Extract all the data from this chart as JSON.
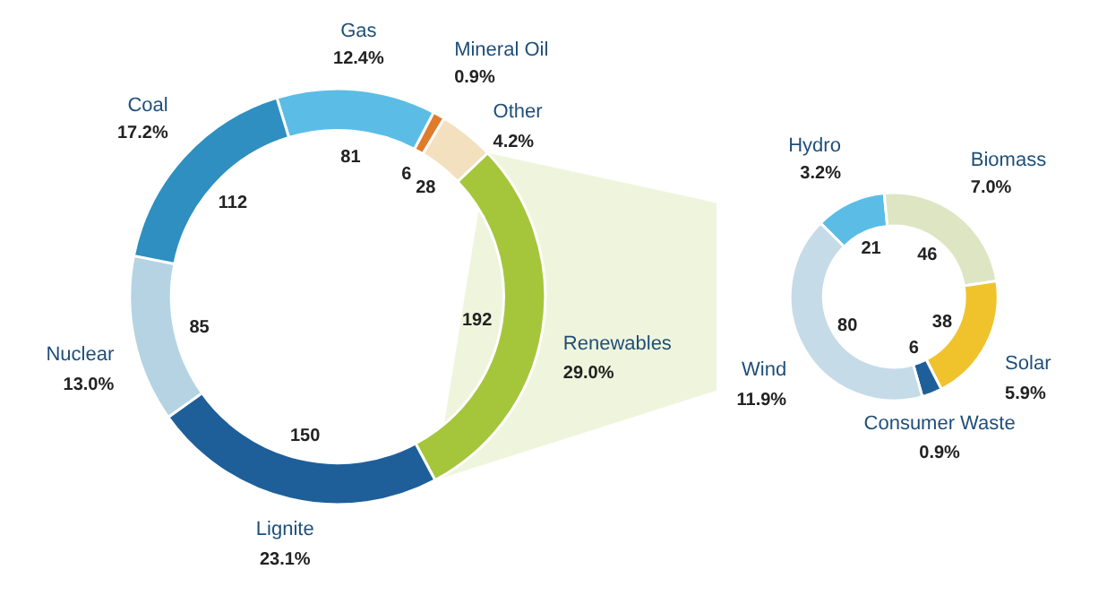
{
  "chart_data": [
    {
      "type": "donut",
      "categories": [
        "Gas",
        "Mineral Oil",
        "Other",
        "Renewables",
        "Lignite",
        "Nuclear",
        "Coal"
      ],
      "values": [
        81,
        6,
        28,
        192,
        150,
        85,
        112
      ],
      "colors": [
        "#5bbde6",
        "#e07b2c",
        "#f3e0bf",
        "#a5c63b",
        "#1e5f9a",
        "#b5d3e3",
        "#2e8fc0"
      ],
      "data_labels": true,
      "annotations": [
        {
          "text": "12.4%",
          "x": "Gas"
        },
        {
          "text": "0.9%",
          "x": "Mineral Oil"
        },
        {
          "text": "4.2%",
          "x": "Other"
        },
        {
          "text": "29.0%",
          "x": "Renewables"
        },
        {
          "text": "23.1%",
          "x": "Lignite"
        },
        {
          "text": "13.0%",
          "x": "Nuclear"
        },
        {
          "text": "17.2%",
          "x": "Coal"
        }
      ]
    },
    {
      "type": "donut",
      "categories": [
        "Hydro",
        "Biomass",
        "Solar",
        "Consumer Waste",
        "Wind"
      ],
      "values": [
        21,
        46,
        38,
        6,
        80
      ],
      "colors": [
        "#5bbde6",
        "#dde5c3",
        "#f0c32d",
        "#1e5f9a",
        "#c5dbe8"
      ],
      "data_labels": true,
      "annotations": [
        {
          "text": "3.2%",
          "x": "Hydro"
        },
        {
          "text": "7.0%",
          "x": "Biomass"
        },
        {
          "text": "5.9%",
          "x": "Solar"
        },
        {
          "text": "0.9%",
          "x": "Consumer Waste"
        },
        {
          "text": "11.9%",
          "x": "Wind"
        }
      ]
    }
  ]
}
